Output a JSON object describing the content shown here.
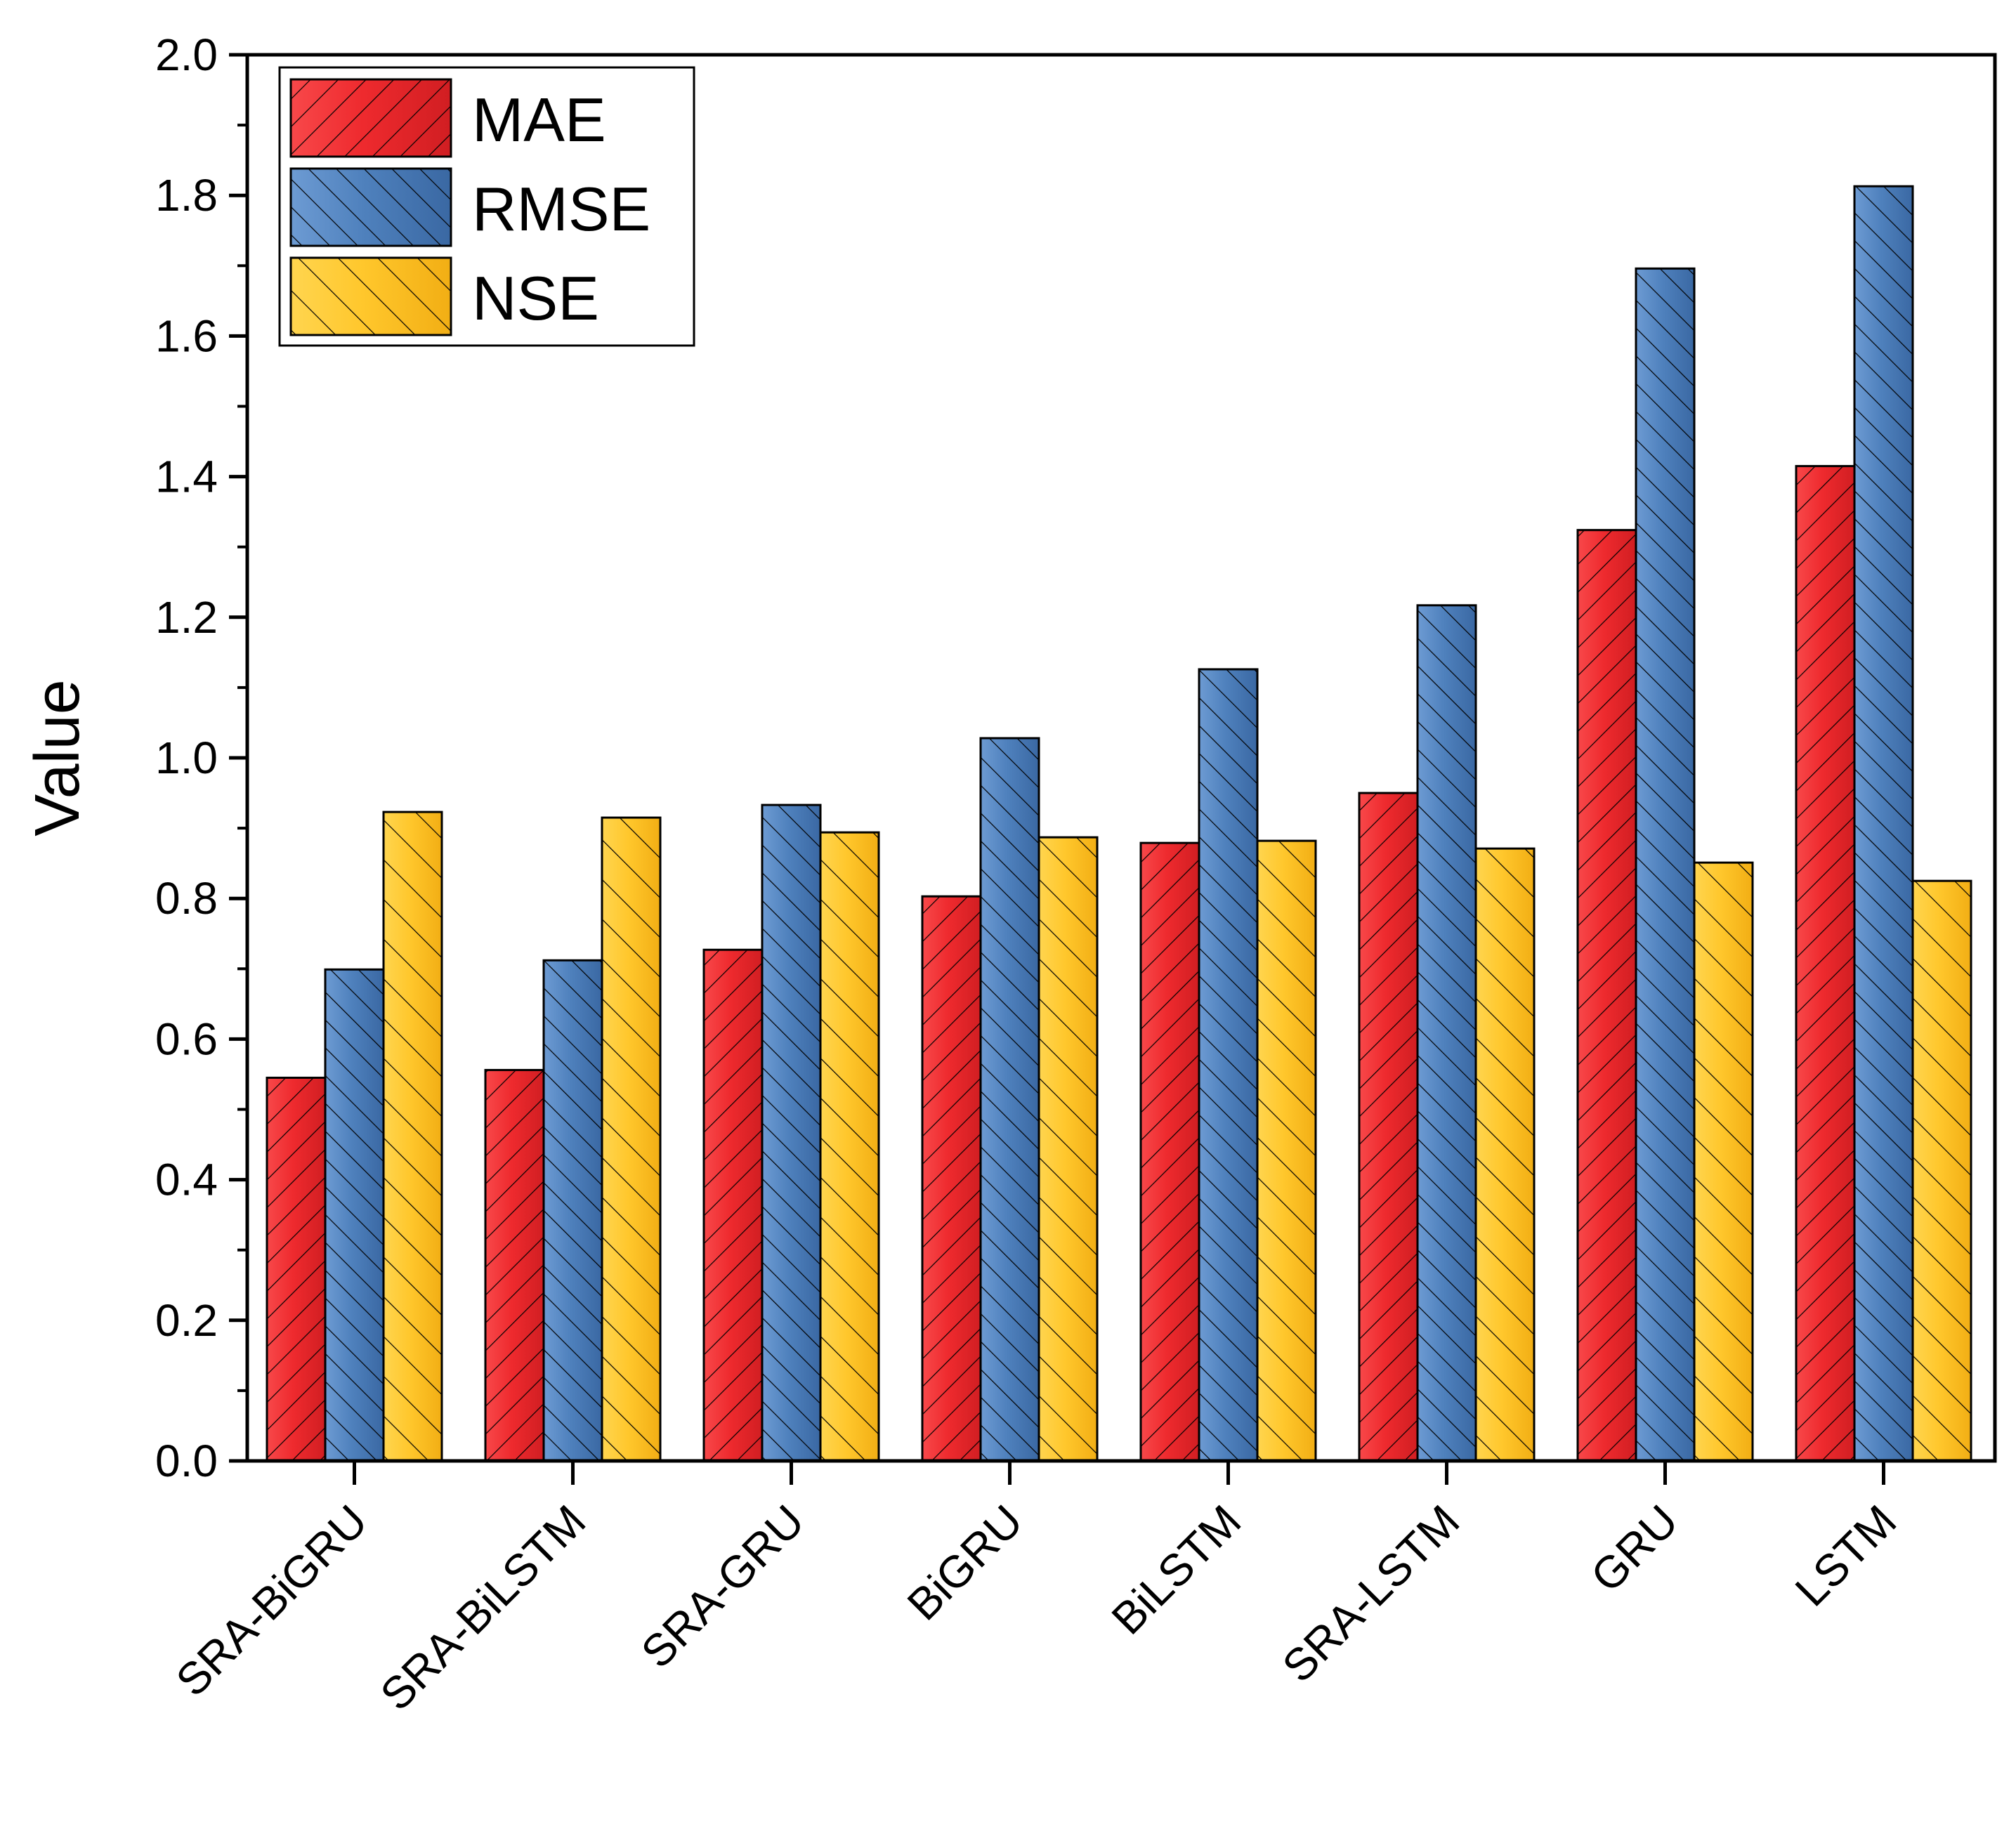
{
  "chart_data": {
    "type": "bar",
    "title": "",
    "xlabel": "",
    "ylabel": "Value",
    "ylim": [
      0,
      2.0
    ],
    "yticks": [
      "0.0",
      "0.2",
      "0.4",
      "0.6",
      "0.8",
      "1.0",
      "1.2",
      "1.4",
      "1.6",
      "1.8",
      "2.0"
    ],
    "categories": [
      "SRA-BiGRU",
      "SRA-BiLSTM",
      "SRA-GRU",
      "BiGRU",
      "BiLSTM",
      "SRA-LSTM",
      "GRU",
      "LSTM"
    ],
    "series": [
      {
        "name": "MAE",
        "color": "#ee2a2e",
        "hatch": "forward-diagonal",
        "values": [
          0.545,
          0.556,
          0.727,
          0.803,
          0.879,
          0.95,
          1.324,
          1.415
        ]
      },
      {
        "name": "RMSE",
        "color": "#4f81bd",
        "hatch": "backward-diagonal",
        "values": [
          0.699,
          0.712,
          0.933,
          1.028,
          1.126,
          1.217,
          1.696,
          1.813
        ]
      },
      {
        "name": "NSE",
        "color": "#ffc72c",
        "hatch": "backward-diagonal-sparse",
        "values": [
          0.923,
          0.915,
          0.894,
          0.887,
          0.882,
          0.871,
          0.851,
          0.825
        ]
      }
    ],
    "legend": {
      "position": "top-left",
      "entries": [
        "MAE",
        "RMSE",
        "NSE"
      ]
    },
    "grid": false
  }
}
